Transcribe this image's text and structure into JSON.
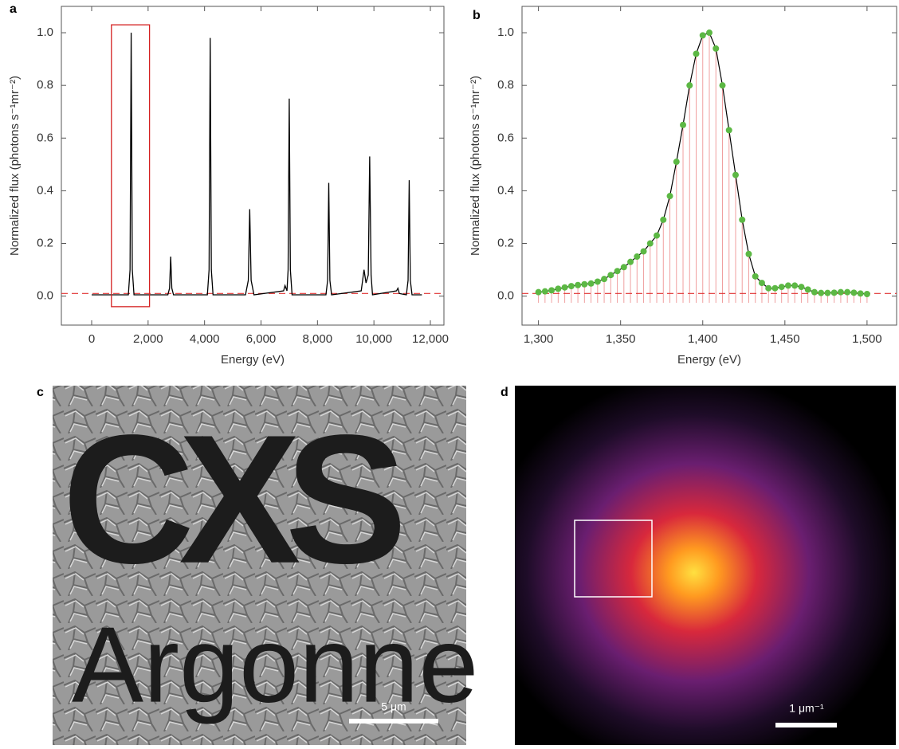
{
  "chart_data": [
    {
      "type": "line",
      "panel_label": "a",
      "xlabel": "Energy (eV)",
      "ylabel": "Normalized flux (photons s⁻¹mr⁻²)",
      "x": [
        0,
        1300,
        1360,
        1400,
        1440,
        1500,
        2700,
        2760,
        2800,
        2840,
        2900,
        4100,
        4160,
        4200,
        4240,
        4300,
        5450,
        5550,
        5600,
        5650,
        5750,
        6800,
        6850,
        6920,
        6960,
        7000,
        7040,
        7100,
        8300,
        8360,
        8400,
        8440,
        8500,
        9550,
        9650,
        9720,
        9800,
        9850,
        9900,
        9950,
        10800,
        10850,
        10900,
        11150,
        11210,
        11250,
        11290,
        11350,
        11700
      ],
      "values": [
        0.005,
        0.005,
        0.1,
        1.0,
        0.1,
        0.005,
        0.005,
        0.03,
        0.15,
        0.03,
        0.005,
        0.005,
        0.1,
        0.98,
        0.1,
        0.005,
        0.005,
        0.06,
        0.33,
        0.06,
        0.005,
        0.02,
        0.04,
        0.02,
        0.1,
        0.75,
        0.1,
        0.005,
        0.005,
        0.06,
        0.43,
        0.06,
        0.005,
        0.02,
        0.1,
        0.05,
        0.08,
        0.53,
        0.08,
        0.005,
        0.02,
        0.03,
        0.01,
        0.005,
        0.06,
        0.44,
        0.06,
        0.005,
        0.005
      ],
      "color": "#000000",
      "xlim": [
        -1073,
        12480
      ],
      "ylim": [
        -0.11,
        1.1
      ],
      "xticks": [
        0,
        {
          "value": 2000,
          "label": "2,000"
        },
        {
          "value": 4000,
          "label": "4,000"
        },
        {
          "value": 6000,
          "label": "6,000"
        },
        {
          "value": 8000,
          "label": "8,000"
        },
        {
          "value": 10000,
          "label": "10,000"
        },
        {
          "value": 12000,
          "label": "12,000"
        }
      ],
      "yticks": [
        {
          "value": 0,
          "label": "0.0"
        },
        0.2,
        0.4,
        0.6,
        0.8,
        {
          "value": 1,
          "label": "1.0"
        }
      ],
      "reference_line": {
        "value": 0.01,
        "color": "#e03030"
      },
      "highlight_box": {
        "x": [
          700,
          2050
        ],
        "y": [
          -0.04,
          1.03
        ],
        "color": "#d42020"
      }
    },
    {
      "type": "scatter",
      "panel_label": "b",
      "xlabel": "Energy (eV)",
      "ylabel": "Normalized flux (photons s⁻¹mr⁻²)",
      "x": [
        1300,
        1304,
        1308,
        1312,
        1316,
        1320,
        1324,
        1328,
        1332,
        1336,
        1340,
        1344,
        1348,
        1352,
        1356,
        1360,
        1364,
        1368,
        1372,
        1376,
        1380,
        1384,
        1388,
        1392,
        1396,
        1400,
        1404,
        1408,
        1412,
        1416,
        1420,
        1424,
        1428,
        1432,
        1436,
        1440,
        1444,
        1448,
        1452,
        1456,
        1460,
        1464,
        1468,
        1472,
        1476,
        1480,
        1484,
        1488,
        1492,
        1496,
        1500
      ],
      "values": [
        0.015,
        0.018,
        0.022,
        0.028,
        0.033,
        0.038,
        0.042,
        0.045,
        0.048,
        0.055,
        0.065,
        0.08,
        0.095,
        0.11,
        0.13,
        0.15,
        0.17,
        0.2,
        0.23,
        0.29,
        0.38,
        0.51,
        0.65,
        0.8,
        0.92,
        0.99,
        1.0,
        0.94,
        0.8,
        0.63,
        0.46,
        0.29,
        0.16,
        0.075,
        0.05,
        0.03,
        0.03,
        0.035,
        0.04,
        0.04,
        0.035,
        0.025,
        0.015,
        0.012,
        0.012,
        0.013,
        0.015,
        0.015,
        0.013,
        0.01,
        0.008
      ],
      "color": "#5cb844",
      "line_color": "#000000",
      "stem_color": "#f0a0a0",
      "xlim": [
        1290,
        1518
      ],
      "ylim": [
        -0.11,
        1.1
      ],
      "xticks": [
        {
          "value": 1300,
          "label": "1,300"
        },
        {
          "value": 1350,
          "label": "1,350"
        },
        {
          "value": 1400,
          "label": "1,400"
        },
        {
          "value": 1450,
          "label": "1,450"
        },
        {
          "value": 1500,
          "label": "1,500"
        }
      ],
      "yticks": [
        {
          "value": 0,
          "label": "0.0"
        },
        0.2,
        0.4,
        0.6,
        0.8,
        {
          "value": 1,
          "label": "1.0"
        }
      ],
      "reference_line": {
        "value": 0.01,
        "color": "#e03030"
      }
    }
  ],
  "images": [
    {
      "panel_label": "c",
      "texts": [
        "CXS",
        "Argonne"
      ],
      "scale_bar": "5 μm"
    },
    {
      "panel_label": "d",
      "scale_bar": "1 μm⁻¹"
    }
  ]
}
